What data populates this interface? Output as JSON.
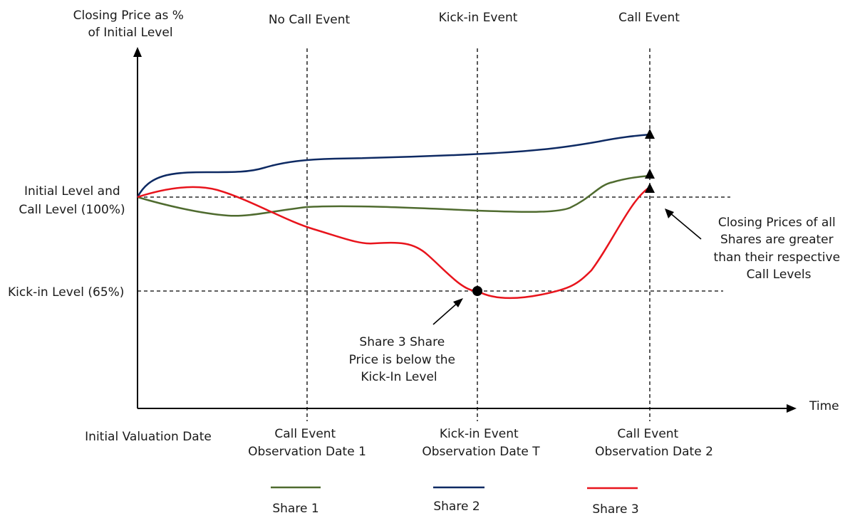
{
  "y_axis": {
    "title_line1": "Closing Price as %",
    "title_line2": "of Initial Level"
  },
  "x_axis": {
    "title": "Time"
  },
  "levels": {
    "initial": {
      "line1": "Initial Level and",
      "line2": "Call Level (100%)"
    },
    "kickin": {
      "label": "Kick-in Level (65%)"
    }
  },
  "events": {
    "e1": {
      "top": "No Call Event",
      "bottom_line1": "Call Event",
      "bottom_line2": "Observation Date 1"
    },
    "e2": {
      "top": "Kick-in Event",
      "bottom_line1": "Kick-in Event",
      "bottom_line2": "Observation Date T"
    },
    "e3": {
      "top": "Call Event",
      "bottom_line1": "Call Event",
      "bottom_line2": "Observation Date 2"
    }
  },
  "initial_date": "Initial Valuation Date",
  "annotations": {
    "share3_below": {
      "line1": "Share 3 Share",
      "line2": "Price is below the",
      "line3": "Kick-In Level"
    },
    "closing_above": {
      "line1": "Closing Prices of all",
      "line2": "Shares are greater",
      "line3": "than their respective",
      "line4": "Call Levels"
    }
  },
  "legend": [
    {
      "label": "Share 1",
      "color": "#4f6b2f"
    },
    {
      "label": "Share 2",
      "color": "#0e2a63"
    },
    {
      "label": "Share 3",
      "color": "#e8141c"
    }
  ],
  "colors": {
    "share1": "#4f6b2f",
    "share2": "#0e2a63",
    "share3": "#e8141c",
    "axis": "#000000"
  }
}
